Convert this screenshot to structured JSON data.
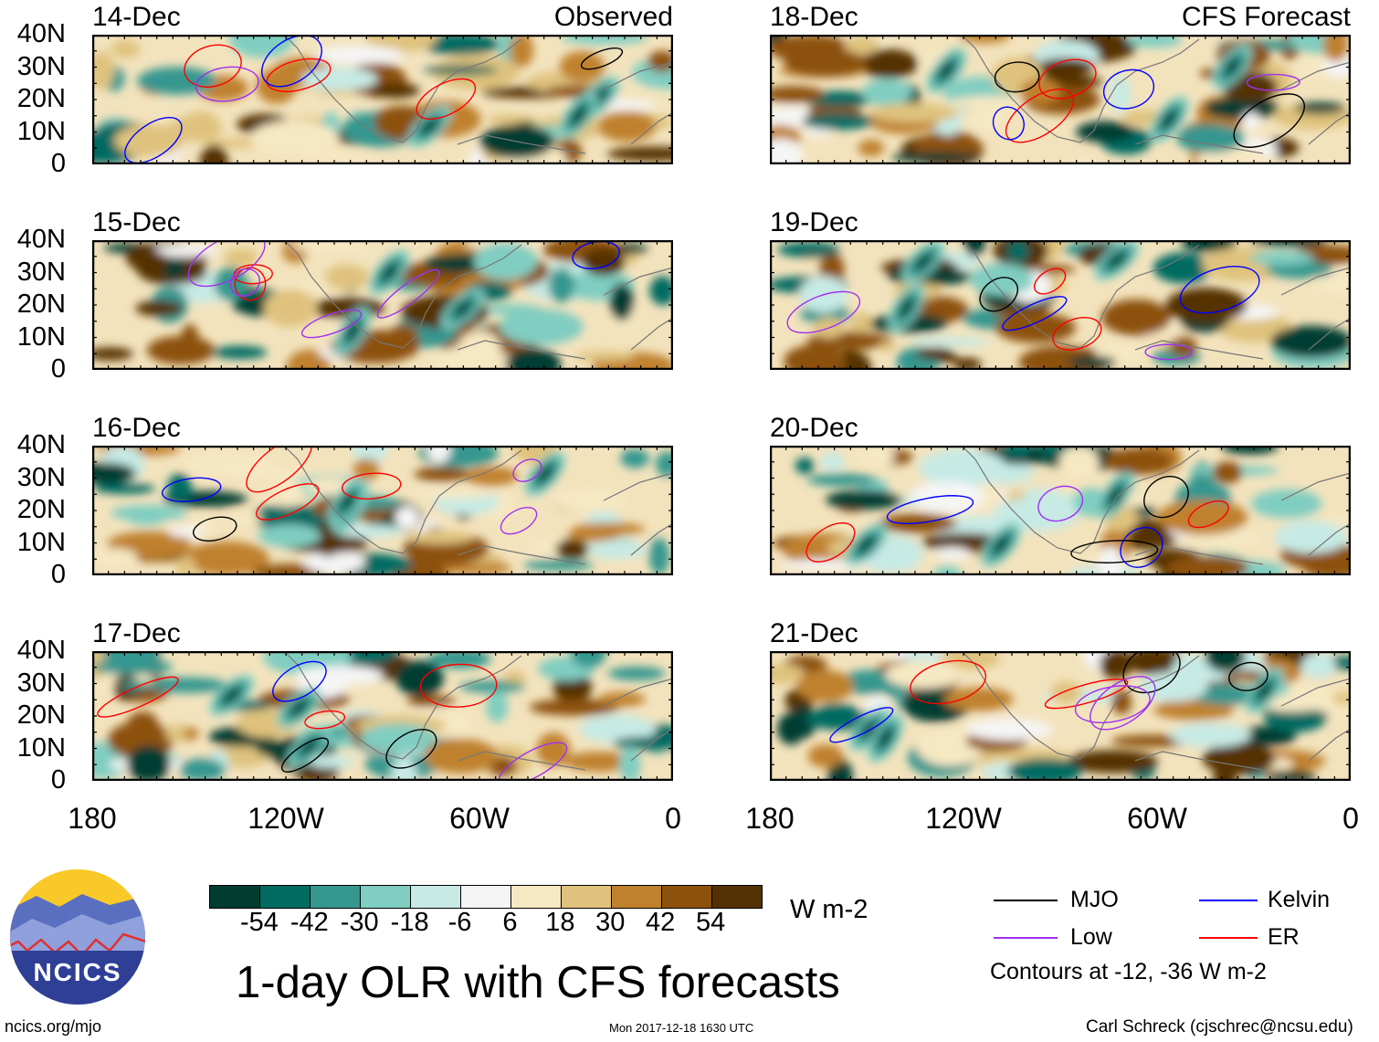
{
  "chart_data": {
    "type": "heatmap",
    "title": "1-day OLR with CFS forecasts",
    "units": "W m-2",
    "panels": [
      {
        "date": "14-Dec",
        "label": "Observed",
        "column": "observed"
      },
      {
        "date": "15-Dec",
        "label": "",
        "column": "observed"
      },
      {
        "date": "16-Dec",
        "label": "",
        "column": "observed"
      },
      {
        "date": "17-Dec",
        "label": "",
        "column": "observed"
      },
      {
        "date": "18-Dec",
        "label": "CFS Forecast",
        "column": "forecast"
      },
      {
        "date": "19-Dec",
        "label": "",
        "column": "forecast"
      },
      {
        "date": "20-Dec",
        "label": "",
        "column": "forecast"
      },
      {
        "date": "21-Dec",
        "label": "",
        "column": "forecast"
      }
    ],
    "y_ticks": [
      "40N",
      "30N",
      "20N",
      "10N",
      "0"
    ],
    "x_ticks": [
      "180",
      "120W",
      "60W",
      "0"
    ],
    "xlim": [
      -180,
      0
    ],
    "ylim": [
      0,
      40
    ],
    "colorbar": {
      "levels": [
        "-54",
        "-42",
        "-30",
        "-18",
        "-6",
        "6",
        "18",
        "30",
        "42",
        "54"
      ],
      "colors": [
        "#013c30",
        "#016b62",
        "#35978f",
        "#80cdc1",
        "#c7eae5",
        "#f5f5f5",
        "#f6e8c3",
        "#dfc27d",
        "#bf812d",
        "#8c510a",
        "#543005"
      ],
      "units_label": "W m-2"
    },
    "legend": [
      {
        "name": "MJO",
        "color": "#000000"
      },
      {
        "name": "Kelvin",
        "color": "#0000ff"
      },
      {
        "name": "Low",
        "color": "#a030f0"
      },
      {
        "name": "ER",
        "color": "#ff0000"
      }
    ],
    "contour_note": "Contours at -12, -36 W m-2"
  },
  "footer": {
    "logo_text": "NCICS",
    "url": "ncics.org/mjo",
    "timestamp": "Mon 2017-12-18 1630 UTC",
    "credit": "Carl Schreck (cjschrec@ncsu.edu)"
  }
}
